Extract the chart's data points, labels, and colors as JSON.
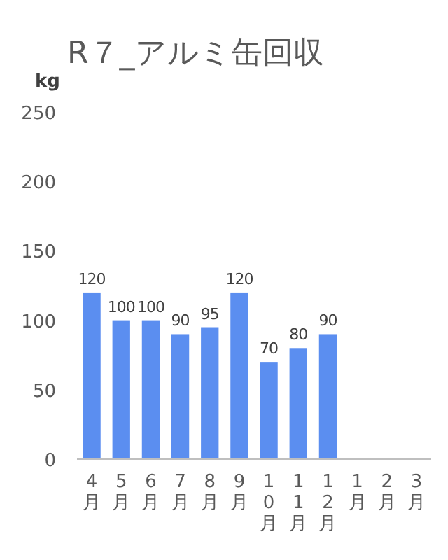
{
  "chart_data": {
    "type": "bar",
    "title": "R７_アルミ缶回収",
    "ylabel": "kg",
    "categories": [
      "4月",
      "5月",
      "6月",
      "7月",
      "8月",
      "9月",
      "10月",
      "11月",
      "12月",
      "1月",
      "2月",
      "3月"
    ],
    "values": [
      120,
      100,
      100,
      90,
      95,
      120,
      70,
      80,
      90,
      null,
      null,
      null
    ],
    "color": "#5b8ef0",
    "ylim": [
      0,
      250
    ],
    "yticks": [
      0,
      50,
      100,
      150,
      200,
      250
    ],
    "data_labels": true
  }
}
